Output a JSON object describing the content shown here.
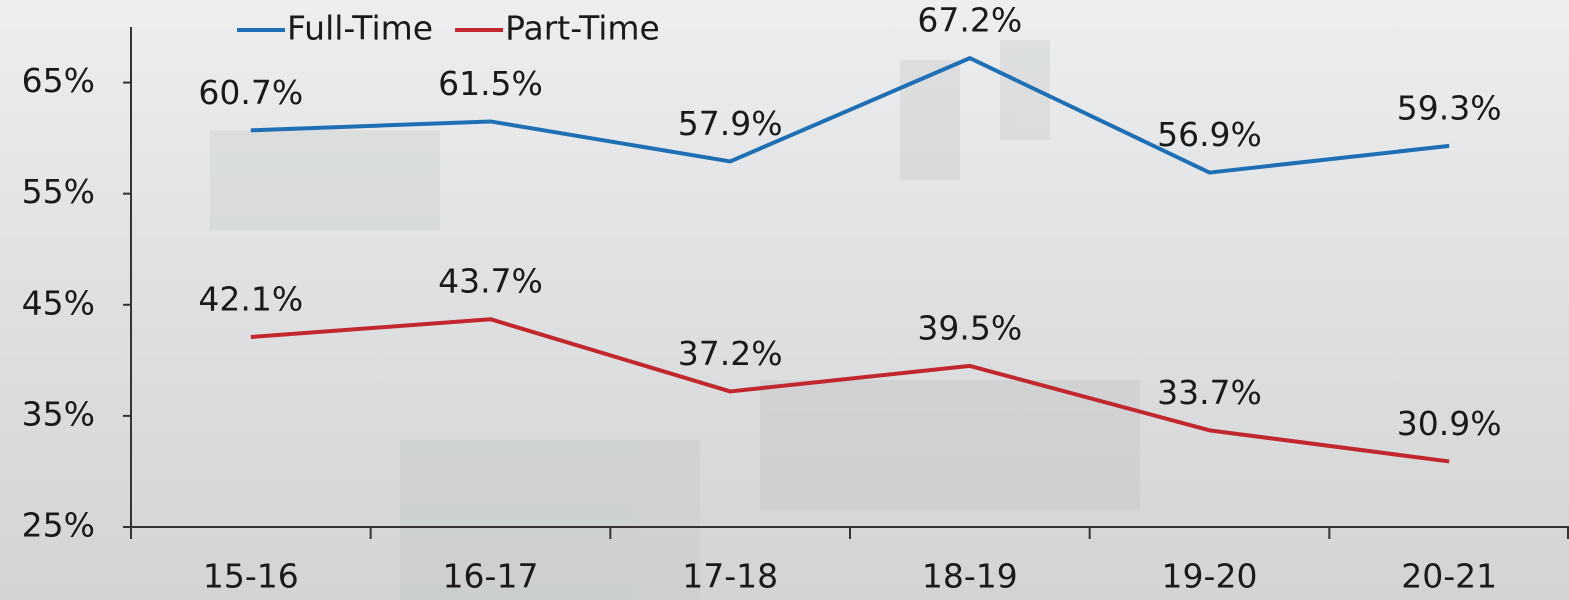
{
  "chart_data": {
    "type": "line",
    "categories": [
      "15-16",
      "16-17",
      "17-18",
      "18-19",
      "19-20",
      "20-21"
    ],
    "series": [
      {
        "name": "Full-Time",
        "color": "#1f6fb5",
        "values": [
          60.7,
          61.5,
          57.9,
          67.2,
          56.9,
          59.3
        ],
        "value_labels": [
          "60.7%",
          "61.5%",
          "57.9%",
          "67.2%",
          "56.9%",
          "59.3%"
        ]
      },
      {
        "name": "Part-Time",
        "color": "#c1272d",
        "values": [
          42.1,
          43.7,
          37.2,
          39.5,
          33.7,
          30.9
        ],
        "value_labels": [
          "42.1%",
          "43.7%",
          "37.2%",
          "39.5%",
          "33.7%",
          "30.9%"
        ]
      }
    ],
    "ylim": [
      25,
      70
    ],
    "yticks": [
      {
        "value": 25,
        "label": "25%"
      },
      {
        "value": 35,
        "label": "35%"
      },
      {
        "value": 45,
        "label": "45%"
      },
      {
        "value": 55,
        "label": "55%"
      },
      {
        "value": 65,
        "label": "65%"
      }
    ],
    "grid": false,
    "legend": "top-left"
  }
}
